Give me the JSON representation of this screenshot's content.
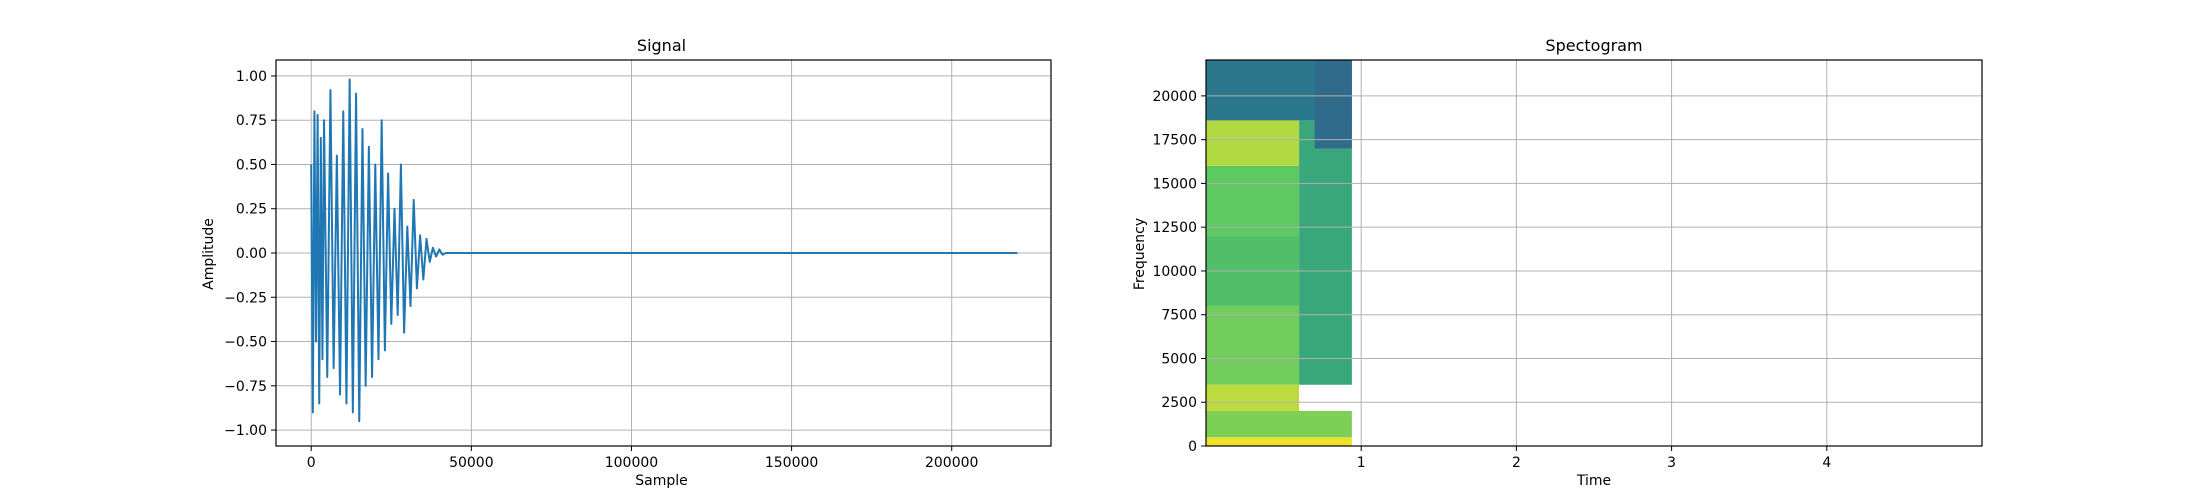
{
  "chart_data": [
    {
      "type": "line",
      "title": "Signal",
      "xlabel": "Sample",
      "ylabel": "Amplitude",
      "xlim": [
        -11000,
        231000
      ],
      "ylim": [
        -1.09,
        1.09
      ],
      "xticks": [
        0,
        50000,
        100000,
        150000,
        200000
      ],
      "yticks": [
        -1.0,
        -0.75,
        -0.5,
        -0.25,
        0.0,
        0.25,
        0.5,
        0.75,
        1.0
      ],
      "xtick_labels": [
        "0",
        "50000",
        "100000",
        "150000",
        "200000"
      ],
      "ytick_labels": [
        "−1.00",
        "−0.75",
        "−0.50",
        "−0.25",
        "0.00",
        "0.25",
        "0.50",
        "0.75",
        "1.00"
      ],
      "grid": true,
      "series": [
        {
          "color": "#1f77b4",
          "x": [
            0,
            500,
            1000,
            1500,
            2000,
            2500,
            3000,
            3500,
            4000,
            5000,
            6000,
            7000,
            8000,
            9000,
            10000,
            11000,
            12000,
            13000,
            14000,
            15000,
            16000,
            17000,
            18000,
            19000,
            20000,
            21000,
            22000,
            23000,
            24000,
            25000,
            26000,
            27000,
            28000,
            29000,
            30000,
            31000,
            32000,
            33000,
            34000,
            35000,
            36000,
            37000,
            38000,
            39000,
            40000,
            41000,
            42000,
            60000,
            100000,
            150000,
            200000,
            220500
          ],
          "y": [
            0.5,
            -0.9,
            0.8,
            -0.5,
            0.78,
            -0.85,
            0.65,
            -0.6,
            0.75,
            -0.7,
            0.92,
            -0.65,
            0.55,
            -0.8,
            0.8,
            -0.85,
            0.98,
            -0.9,
            0.9,
            -0.95,
            0.7,
            -0.75,
            0.6,
            -0.7,
            0.5,
            -0.6,
            0.75,
            -0.55,
            0.45,
            -0.4,
            0.25,
            -0.35,
            0.5,
            -0.45,
            0.15,
            -0.3,
            0.3,
            -0.2,
            0.1,
            -0.15,
            0.08,
            -0.05,
            0.03,
            -0.02,
            0.02,
            -0.01,
            0.0,
            0.0,
            0.0,
            0.0,
            0.0,
            0.0
          ]
        }
      ]
    },
    {
      "type": "heatmap",
      "title": "Spectogram",
      "xlabel": "Time",
      "ylabel": "Frequency",
      "xlim": [
        0.0,
        5.0
      ],
      "ylim": [
        0,
        22050
      ],
      "xticks": [
        1,
        2,
        3,
        4
      ],
      "yticks": [
        0,
        2500,
        5000,
        7500,
        10000,
        12500,
        15000,
        17500,
        20000
      ],
      "xtick_labels": [
        "1",
        "2",
        "3",
        "4"
      ],
      "ytick_labels": [
        "0",
        "2500",
        "5000",
        "7500",
        "10000",
        "12500",
        "15000",
        "17500",
        "20000"
      ],
      "grid": true,
      "signal_end_time": 0.94,
      "colormap": "viridis",
      "bands": [
        {
          "f_start": 0,
          "f_end": 500,
          "t_start": 0.0,
          "t_end": 0.94,
          "level": 0.97
        },
        {
          "f_start": 500,
          "f_end": 2000,
          "t_start": 0.0,
          "t_end": 0.94,
          "level": 0.8
        },
        {
          "f_start": 2000,
          "f_end": 3500,
          "t_start": 0.0,
          "t_end": 0.6,
          "level": 0.9
        },
        {
          "f_start": 3500,
          "f_end": 8000,
          "t_start": 0.0,
          "t_end": 0.6,
          "level": 0.78
        },
        {
          "f_start": 8000,
          "f_end": 12000,
          "t_start": 0.0,
          "t_end": 0.6,
          "level": 0.7
        },
        {
          "f_start": 12000,
          "f_end": 16000,
          "t_start": 0.0,
          "t_end": 0.6,
          "level": 0.75
        },
        {
          "f_start": 16000,
          "f_end": 18600,
          "t_start": 0.0,
          "t_end": 0.6,
          "level": 0.88
        },
        {
          "f_start": 3500,
          "f_end": 18600,
          "t_start": 0.6,
          "t_end": 0.94,
          "level": 0.6
        },
        {
          "f_start": 18600,
          "f_end": 22050,
          "t_start": 0.0,
          "t_end": 0.94,
          "level": 0.4
        },
        {
          "f_start": 17000,
          "f_end": 22050,
          "t_start": 0.7,
          "t_end": 0.94,
          "level": 0.35
        }
      ]
    }
  ]
}
